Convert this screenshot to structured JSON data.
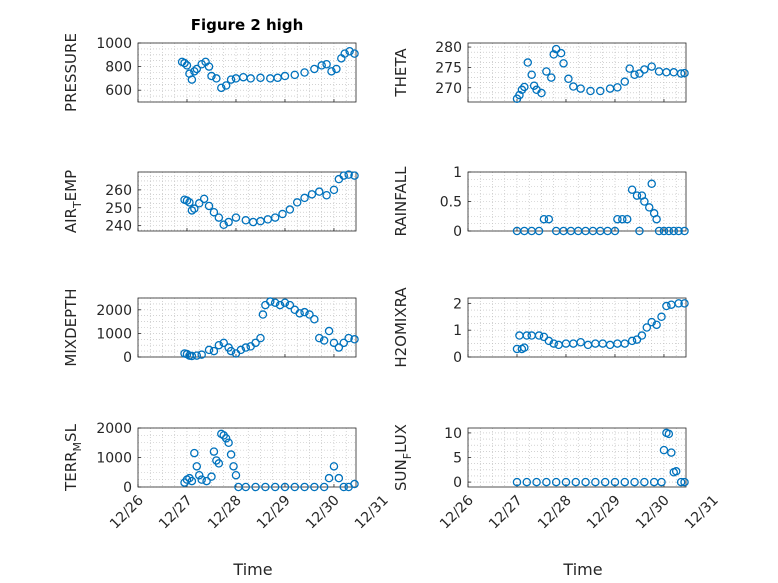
{
  "figure": {
    "title": "Figure 2 high",
    "xlabel": "Time",
    "x_ticks": [
      "12/26",
      "12/27",
      "12/28",
      "12/29",
      "12/30",
      "12/31"
    ]
  },
  "colors": {
    "marker": "#0072BD",
    "axis": "#262626",
    "grid": "#b8b8b8"
  },
  "chart_data": [
    {
      "type": "scatter",
      "ylabel": "PRESSURE",
      "ylabel_sub": "",
      "ylabel_rest": "",
      "ylim": [
        500,
        1000
      ],
      "yticks": [
        600,
        800,
        1000
      ],
      "xlim": [
        1,
        5.45
      ],
      "points": [
        [
          1.9,
          840
        ],
        [
          1.95,
          830
        ],
        [
          2,
          810
        ],
        [
          2.05,
          740
        ],
        [
          2.1,
          690
        ],
        [
          2.15,
          760
        ],
        [
          2.2,
          780
        ],
        [
          2.3,
          820
        ],
        [
          2.38,
          840
        ],
        [
          2.45,
          800
        ],
        [
          2.5,
          720
        ],
        [
          2.6,
          700
        ],
        [
          2.7,
          620
        ],
        [
          2.8,
          640
        ],
        [
          2.9,
          690
        ],
        [
          3,
          700
        ],
        [
          3.15,
          710
        ],
        [
          3.3,
          700
        ],
        [
          3.5,
          705
        ],
        [
          3.7,
          700
        ],
        [
          3.85,
          705
        ],
        [
          4,
          720
        ],
        [
          4.2,
          730
        ],
        [
          4.4,
          750
        ],
        [
          4.6,
          780
        ],
        [
          4.75,
          810
        ],
        [
          4.85,
          820
        ],
        [
          4.95,
          760
        ],
        [
          5.05,
          780
        ],
        [
          5.15,
          870
        ],
        [
          5.22,
          910
        ],
        [
          5.32,
          930
        ],
        [
          5.42,
          910
        ]
      ]
    },
    {
      "type": "scatter",
      "ylabel": "THETA",
      "ylabel_sub": "",
      "ylabel_rest": "",
      "ylim": [
        266.5,
        281
      ],
      "yticks": [
        270,
        275,
        280
      ],
      "xlim": [
        1,
        5.45
      ],
      "points": [
        [
          2,
          267.3
        ],
        [
          2.05,
          268.2
        ],
        [
          2.1,
          269.5
        ],
        [
          2.15,
          270.2
        ],
        [
          2.22,
          276.2
        ],
        [
          2.3,
          273.2
        ],
        [
          2.35,
          270.5
        ],
        [
          2.4,
          269.5
        ],
        [
          2.5,
          268.7
        ],
        [
          2.6,
          274
        ],
        [
          2.7,
          272.5
        ],
        [
          2.75,
          278.2
        ],
        [
          2.8,
          279.5
        ],
        [
          2.9,
          278.5
        ],
        [
          2.95,
          276
        ],
        [
          3.05,
          272.2
        ],
        [
          3.15,
          270.3
        ],
        [
          3.3,
          269.8
        ],
        [
          3.5,
          269.2
        ],
        [
          3.7,
          269.2
        ],
        [
          3.9,
          269.8
        ],
        [
          4.05,
          270.1
        ],
        [
          4.2,
          271.5
        ],
        [
          4.3,
          274.7
        ],
        [
          4.4,
          273.2
        ],
        [
          4.5,
          273.5
        ],
        [
          4.6,
          274.5
        ],
        [
          4.75,
          275.2
        ],
        [
          4.9,
          274
        ],
        [
          5.05,
          273.8
        ],
        [
          5.2,
          273.8
        ],
        [
          5.35,
          273.5
        ],
        [
          5.42,
          273.6
        ]
      ]
    },
    {
      "type": "scatter",
      "ylabel": "AIR",
      "ylabel_sub": "T",
      "ylabel_rest": "EMP",
      "ylim": [
        237,
        270
      ],
      "yticks": [
        240,
        250,
        260
      ],
      "xlim": [
        1,
        5.45
      ],
      "points": [
        [
          1.95,
          254.5
        ],
        [
          2,
          254
        ],
        [
          2.05,
          253
        ],
        [
          2.1,
          248.5
        ],
        [
          2.15,
          249.5
        ],
        [
          2.25,
          252.5
        ],
        [
          2.35,
          255
        ],
        [
          2.45,
          251
        ],
        [
          2.55,
          247.5
        ],
        [
          2.65,
          244.5
        ],
        [
          2.75,
          240.5
        ],
        [
          2.85,
          242
        ],
        [
          3,
          244.5
        ],
        [
          3.2,
          243
        ],
        [
          3.35,
          242
        ],
        [
          3.5,
          242.5
        ],
        [
          3.65,
          243.5
        ],
        [
          3.8,
          244.5
        ],
        [
          3.95,
          246.5
        ],
        [
          4.1,
          249
        ],
        [
          4.25,
          253
        ],
        [
          4.4,
          255.5
        ],
        [
          4.55,
          257.5
        ],
        [
          4.7,
          259
        ],
        [
          4.85,
          257
        ],
        [
          5,
          260
        ],
        [
          5.1,
          266
        ],
        [
          5.2,
          268
        ],
        [
          5.3,
          268.5
        ],
        [
          5.42,
          268
        ]
      ]
    },
    {
      "type": "scatter",
      "ylabel": "RAINFALL",
      "ylabel_sub": "",
      "ylabel_rest": "",
      "ylim": [
        0,
        1
      ],
      "yticks": [
        0,
        0.5,
        1
      ],
      "xlim": [
        1,
        5.45
      ],
      "points": [
        [
          2,
          0
        ],
        [
          2.15,
          0
        ],
        [
          2.3,
          0
        ],
        [
          2.45,
          0
        ],
        [
          2.55,
          0.2
        ],
        [
          2.65,
          0.2
        ],
        [
          2.8,
          0
        ],
        [
          2.95,
          0
        ],
        [
          3.1,
          0
        ],
        [
          3.25,
          0
        ],
        [
          3.4,
          0
        ],
        [
          3.55,
          0
        ],
        [
          3.7,
          0
        ],
        [
          3.85,
          0
        ],
        [
          4,
          0
        ],
        [
          4.05,
          0.2
        ],
        [
          4.15,
          0.2
        ],
        [
          4.25,
          0.2
        ],
        [
          4.35,
          0.7
        ],
        [
          4.45,
          0.6
        ],
        [
          4.5,
          0
        ],
        [
          4.55,
          0.6
        ],
        [
          4.6,
          0.5
        ],
        [
          4.7,
          0.4
        ],
        [
          4.75,
          0.8
        ],
        [
          4.8,
          0.3
        ],
        [
          4.85,
          0.2
        ],
        [
          4.9,
          0
        ],
        [
          5,
          0
        ],
        [
          5.1,
          0
        ],
        [
          5.2,
          0
        ],
        [
          5.3,
          0
        ],
        [
          5.42,
          0
        ]
      ]
    },
    {
      "type": "scatter",
      "ylabel": "MIXDEPTH",
      "ylabel_sub": "",
      "ylabel_rest": "",
      "ylim": [
        0,
        2500
      ],
      "yticks": [
        0,
        1000,
        2000
      ],
      "xlim": [
        1,
        5.45
      ],
      "points": [
        [
          1.95,
          150
        ],
        [
          2,
          120
        ],
        [
          2.05,
          60
        ],
        [
          2.1,
          40
        ],
        [
          2.2,
          60
        ],
        [
          2.3,
          100
        ],
        [
          2.45,
          300
        ],
        [
          2.55,
          250
        ],
        [
          2.65,
          500
        ],
        [
          2.75,
          600
        ],
        [
          2.85,
          400
        ],
        [
          2.9,
          250
        ],
        [
          3,
          150
        ],
        [
          3.1,
          300
        ],
        [
          3.2,
          400
        ],
        [
          3.3,
          450
        ],
        [
          3.4,
          600
        ],
        [
          3.5,
          800
        ],
        [
          3.55,
          1800
        ],
        [
          3.6,
          2200
        ],
        [
          3.7,
          2350
        ],
        [
          3.8,
          2300
        ],
        [
          3.9,
          2200
        ],
        [
          4,
          2300
        ],
        [
          4.1,
          2200
        ],
        [
          4.2,
          2000
        ],
        [
          4.3,
          1850
        ],
        [
          4.4,
          1900
        ],
        [
          4.5,
          1800
        ],
        [
          4.6,
          1600
        ],
        [
          4.7,
          800
        ],
        [
          4.8,
          700
        ],
        [
          4.9,
          1100
        ],
        [
          5,
          600
        ],
        [
          5.1,
          400
        ],
        [
          5.2,
          600
        ],
        [
          5.3,
          800
        ],
        [
          5.42,
          750
        ]
      ]
    },
    {
      "type": "scatter",
      "ylabel": "H2OMIXRA",
      "ylabel_sub": "",
      "ylabel_rest": "",
      "ylim": [
        0,
        2.2
      ],
      "yticks": [
        0,
        1,
        2
      ],
      "xlim": [
        1,
        5.45
      ],
      "points": [
        [
          2,
          0.3
        ],
        [
          2.05,
          0.8
        ],
        [
          2.1,
          0.3
        ],
        [
          2.15,
          0.35
        ],
        [
          2.2,
          0.8
        ],
        [
          2.3,
          0.8
        ],
        [
          2.45,
          0.8
        ],
        [
          2.55,
          0.75
        ],
        [
          2.65,
          0.6
        ],
        [
          2.75,
          0.5
        ],
        [
          2.85,
          0.45
        ],
        [
          3,
          0.5
        ],
        [
          3.15,
          0.5
        ],
        [
          3.3,
          0.55
        ],
        [
          3.45,
          0.45
        ],
        [
          3.6,
          0.5
        ],
        [
          3.75,
          0.5
        ],
        [
          3.9,
          0.45
        ],
        [
          4.05,
          0.5
        ],
        [
          4.2,
          0.5
        ],
        [
          4.35,
          0.6
        ],
        [
          4.45,
          0.65
        ],
        [
          4.55,
          0.8
        ],
        [
          4.65,
          1.1
        ],
        [
          4.75,
          1.3
        ],
        [
          4.85,
          1.2
        ],
        [
          4.95,
          1.5
        ],
        [
          5.05,
          1.9
        ],
        [
          5.15,
          1.95
        ],
        [
          5.3,
          2
        ],
        [
          5.42,
          2
        ]
      ]
    },
    {
      "type": "scatter",
      "ylabel": "TERR",
      "ylabel_sub": "M",
      "ylabel_rest": "SL",
      "ylim": [
        0,
        2000
      ],
      "yticks": [
        0,
        1000,
        2000
      ],
      "xlim": [
        1,
        5.45
      ],
      "points": [
        [
          1.95,
          150
        ],
        [
          2,
          250
        ],
        [
          2.05,
          300
        ],
        [
          2.1,
          200
        ],
        [
          2.15,
          1150
        ],
        [
          2.2,
          700
        ],
        [
          2.25,
          400
        ],
        [
          2.3,
          250
        ],
        [
          2.4,
          200
        ],
        [
          2.5,
          350
        ],
        [
          2.55,
          1200
        ],
        [
          2.6,
          900
        ],
        [
          2.65,
          800
        ],
        [
          2.7,
          1800
        ],
        [
          2.75,
          1750
        ],
        [
          2.8,
          1650
        ],
        [
          2.85,
          1500
        ],
        [
          2.9,
          1100
        ],
        [
          2.95,
          700
        ],
        [
          3,
          400
        ],
        [
          3.05,
          0
        ],
        [
          3.2,
          0
        ],
        [
          3.4,
          0
        ],
        [
          3.6,
          0
        ],
        [
          3.8,
          0
        ],
        [
          4,
          0
        ],
        [
          4.2,
          0
        ],
        [
          4.4,
          0
        ],
        [
          4.6,
          0
        ],
        [
          4.8,
          0
        ],
        [
          4.9,
          300
        ],
        [
          5,
          700
        ],
        [
          5.1,
          300
        ],
        [
          5.2,
          0
        ],
        [
          5.3,
          0
        ],
        [
          5.42,
          100
        ]
      ]
    },
    {
      "type": "scatter",
      "ylabel": "SUN",
      "ylabel_sub": "F",
      "ylabel_rest": "LUX",
      "ylim": [
        -1,
        11
      ],
      "yticks": [
        0,
        5,
        10
      ],
      "xlim": [
        1,
        5.45
      ],
      "points": [
        [
          2,
          0
        ],
        [
          2.2,
          0
        ],
        [
          2.4,
          0
        ],
        [
          2.6,
          0
        ],
        [
          2.8,
          0
        ],
        [
          3,
          0
        ],
        [
          3.2,
          0
        ],
        [
          3.4,
          0
        ],
        [
          3.6,
          0
        ],
        [
          3.8,
          0
        ],
        [
          4,
          0
        ],
        [
          4.2,
          0
        ],
        [
          4.4,
          0
        ],
        [
          4.6,
          0
        ],
        [
          4.8,
          0
        ],
        [
          4.95,
          0
        ],
        [
          5,
          6.5
        ],
        [
          5.05,
          10
        ],
        [
          5.1,
          9.8
        ],
        [
          5.15,
          6
        ],
        [
          5.2,
          2
        ],
        [
          5.25,
          2.2
        ],
        [
          5.35,
          0
        ],
        [
          5.42,
          0
        ]
      ]
    }
  ]
}
